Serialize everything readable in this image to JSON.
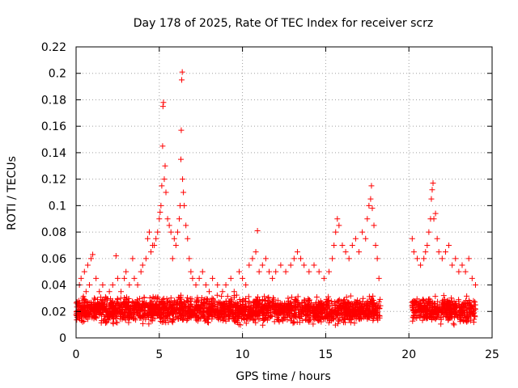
{
  "chart_data": {
    "type": "scatter",
    "title": "Day 178 of 2025, Rate Of TEC Index for receiver scrz",
    "xlabel": "GPS time / hours",
    "ylabel": "ROTI / TECUs",
    "xlim": [
      0,
      25
    ],
    "ylim": [
      0,
      0.22
    ],
    "xticks": [
      0,
      5,
      10,
      15,
      20,
      25
    ],
    "xtick_labels": [
      "0",
      "5",
      "10",
      "15",
      "20",
      "25"
    ],
    "yticks": [
      0,
      0.02,
      0.04,
      0.06,
      0.08,
      0.1,
      0.12,
      0.14,
      0.16,
      0.18,
      0.2,
      0.22
    ],
    "ytick_labels": [
      "0",
      "0.02",
      "0.04",
      "0.06",
      "0.08",
      "0.1",
      "0.12",
      "0.14",
      "0.16",
      "0.18",
      "0.2",
      "0.22"
    ],
    "grid": true,
    "marker": "+",
    "series": [
      {
        "name": "ROTI",
        "color": "#ff0000",
        "points": [
          [
            0.1,
            0.025
          ],
          [
            0.2,
            0.04
          ],
          [
            0.3,
            0.045
          ],
          [
            0.4,
            0.03
          ],
          [
            0.5,
            0.05
          ],
          [
            0.6,
            0.035
          ],
          [
            0.7,
            0.055
          ],
          [
            0.8,
            0.04
          ],
          [
            0.9,
            0.06
          ],
          [
            1.0,
            0.063
          ],
          [
            1.1,
            0.03
          ],
          [
            1.2,
            0.045
          ],
          [
            1.4,
            0.035
          ],
          [
            1.6,
            0.04
          ],
          [
            1.8,
            0.03
          ],
          [
            2.0,
            0.035
          ],
          [
            2.2,
            0.04
          ],
          [
            2.4,
            0.062
          ],
          [
            2.5,
            0.045
          ],
          [
            2.7,
            0.035
          ],
          [
            2.9,
            0.045
          ],
          [
            3.0,
            0.05
          ],
          [
            3.2,
            0.04
          ],
          [
            3.4,
            0.06
          ],
          [
            3.5,
            0.045
          ],
          [
            3.7,
            0.04
          ],
          [
            3.9,
            0.05
          ],
          [
            4.0,
            0.055
          ],
          [
            4.2,
            0.06
          ],
          [
            4.3,
            0.075
          ],
          [
            4.4,
            0.08
          ],
          [
            4.5,
            0.065
          ],
          [
            4.6,
            0.07
          ],
          [
            4.7,
            0.07
          ],
          [
            4.8,
            0.075
          ],
          [
            4.9,
            0.08
          ],
          [
            5.0,
            0.09
          ],
          [
            5.05,
            0.095
          ],
          [
            5.1,
            0.1
          ],
          [
            5.15,
            0.115
          ],
          [
            5.2,
            0.145
          ],
          [
            5.22,
            0.175
          ],
          [
            5.25,
            0.178
          ],
          [
            5.3,
            0.12
          ],
          [
            5.35,
            0.13
          ],
          [
            5.4,
            0.11
          ],
          [
            5.5,
            0.09
          ],
          [
            5.6,
            0.085
          ],
          [
            5.7,
            0.08
          ],
          [
            5.8,
            0.06
          ],
          [
            5.9,
            0.075
          ],
          [
            6.0,
            0.07
          ],
          [
            6.1,
            0.08
          ],
          [
            6.2,
            0.09
          ],
          [
            6.25,
            0.1
          ],
          [
            6.3,
            0.135
          ],
          [
            6.32,
            0.157
          ],
          [
            6.35,
            0.195
          ],
          [
            6.38,
            0.201
          ],
          [
            6.4,
            0.12
          ],
          [
            6.45,
            0.11
          ],
          [
            6.5,
            0.1
          ],
          [
            6.6,
            0.085
          ],
          [
            6.7,
            0.075
          ],
          [
            6.8,
            0.06
          ],
          [
            6.9,
            0.05
          ],
          [
            7.0,
            0.045
          ],
          [
            7.2,
            0.04
          ],
          [
            7.4,
            0.045
          ],
          [
            7.6,
            0.05
          ],
          [
            7.8,
            0.04
          ],
          [
            8.0,
            0.035
          ],
          [
            8.2,
            0.045
          ],
          [
            8.5,
            0.04
          ],
          [
            8.8,
            0.035
          ],
          [
            9.0,
            0.04
          ],
          [
            9.3,
            0.045
          ],
          [
            9.5,
            0.035
          ],
          [
            9.8,
            0.05
          ],
          [
            10.0,
            0.045
          ],
          [
            10.2,
            0.04
          ],
          [
            10.4,
            0.055
          ],
          [
            10.6,
            0.06
          ],
          [
            10.8,
            0.065
          ],
          [
            10.9,
            0.081
          ],
          [
            11.0,
            0.05
          ],
          [
            11.2,
            0.055
          ],
          [
            11.4,
            0.06
          ],
          [
            11.6,
            0.05
          ],
          [
            11.8,
            0.045
          ],
          [
            12.0,
            0.05
          ],
          [
            12.3,
            0.055
          ],
          [
            12.6,
            0.05
          ],
          [
            12.9,
            0.055
          ],
          [
            13.1,
            0.06
          ],
          [
            13.3,
            0.065
          ],
          [
            13.5,
            0.06
          ],
          [
            13.7,
            0.055
          ],
          [
            14.0,
            0.05
          ],
          [
            14.3,
            0.055
          ],
          [
            14.6,
            0.05
          ],
          [
            14.9,
            0.045
          ],
          [
            15.2,
            0.05
          ],
          [
            15.4,
            0.06
          ],
          [
            15.5,
            0.07
          ],
          [
            15.6,
            0.08
          ],
          [
            15.7,
            0.09
          ],
          [
            15.8,
            0.085
          ],
          [
            16.0,
            0.07
          ],
          [
            16.2,
            0.065
          ],
          [
            16.4,
            0.06
          ],
          [
            16.6,
            0.07
          ],
          [
            16.8,
            0.075
          ],
          [
            17.0,
            0.065
          ],
          [
            17.2,
            0.08
          ],
          [
            17.4,
            0.075
          ],
          [
            17.5,
            0.09
          ],
          [
            17.6,
            0.1
          ],
          [
            17.7,
            0.105
          ],
          [
            17.75,
            0.115
          ],
          [
            17.8,
            0.098
          ],
          [
            17.9,
            0.085
          ],
          [
            18.0,
            0.07
          ],
          [
            18.1,
            0.06
          ],
          [
            18.2,
            0.045
          ],
          [
            20.2,
            0.075
          ],
          [
            20.3,
            0.065
          ],
          [
            20.5,
            0.06
          ],
          [
            20.7,
            0.055
          ],
          [
            20.9,
            0.06
          ],
          [
            21.0,
            0.065
          ],
          [
            21.1,
            0.07
          ],
          [
            21.2,
            0.08
          ],
          [
            21.3,
            0.09
          ],
          [
            21.35,
            0.105
          ],
          [
            21.4,
            0.112
          ],
          [
            21.45,
            0.117
          ],
          [
            21.5,
            0.09
          ],
          [
            21.6,
            0.094
          ],
          [
            21.7,
            0.075
          ],
          [
            21.8,
            0.065
          ],
          [
            22.0,
            0.06
          ],
          [
            22.2,
            0.065
          ],
          [
            22.4,
            0.07
          ],
          [
            22.6,
            0.055
          ],
          [
            22.8,
            0.06
          ],
          [
            23.0,
            0.05
          ],
          [
            23.2,
            0.055
          ],
          [
            23.4,
            0.05
          ],
          [
            23.6,
            0.06
          ],
          [
            23.8,
            0.045
          ],
          [
            24.0,
            0.04
          ]
        ],
        "base_band": {
          "segments": [
            [
              0,
              18.3
            ],
            [
              20.2,
              24.0
            ]
          ],
          "center": 0.021,
          "spread": 0.013,
          "density_per_hour": 120
        }
      }
    ]
  }
}
